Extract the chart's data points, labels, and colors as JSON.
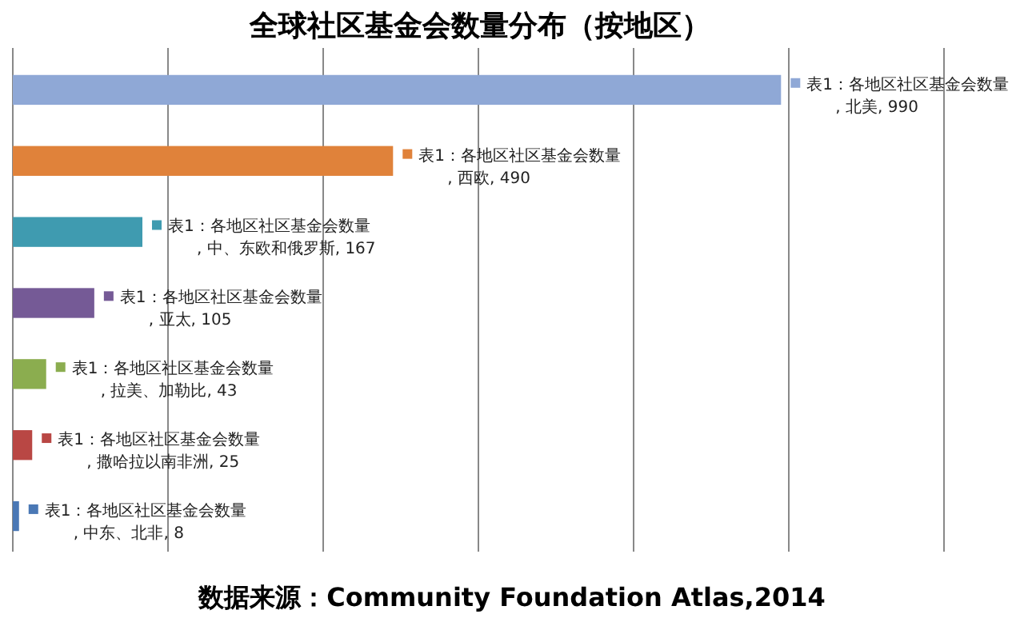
{
  "chart_data": {
    "type": "bar",
    "orientation": "horizontal",
    "title": "全球社区基金会数量分布（按地区）",
    "categories": [
      null,
      null,
      null,
      null,
      null,
      null,
      null
    ],
    "series": [
      {
        "values": [
          990,
          490,
          167,
          105,
          43,
          25,
          8
        ],
        "colors": [
          "#8fa8d6",
          "#e0823a",
          "#3f9bb0",
          "#755a96",
          "#8bad4f",
          "#b94744",
          "#4a78b5"
        ],
        "value_labels": [
          "表1：各地区社区基金会数量, 北美, 990",
          "表1：各地区社区基金会数量, 西欧, 490",
          "表1：各地区社区基金会数量, 中、东欧和俄罗斯, 167",
          "表1：各地区社区基金会数量, 亚太, 105",
          "表1：各地区社区基金会数量, 拉美、加勒比, 43",
          "表1：各地区社区基金会数量, 撒哈拉以南非洲, 25",
          "表1：各地区社区基金会数量, 中东、北非, 8"
        ]
      }
    ],
    "xlim": [
      0,
      1200
    ],
    "xticks": [
      {
        "value": 0,
        "label": null
      },
      {
        "value": 200,
        "label": null
      },
      {
        "value": 400,
        "label": null
      },
      {
        "value": 600,
        "label": null
      },
      {
        "value": 800,
        "label": null
      },
      {
        "value": 1000,
        "label": null
      },
      {
        "value": 1200,
        "label": null
      }
    ],
    "grid": "x",
    "annotations": [
      "数据来源：Community Foundation Atlas,2014"
    ]
  }
}
